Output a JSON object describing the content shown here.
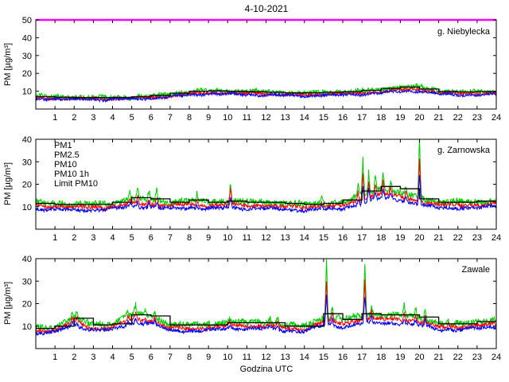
{
  "title": "4-10-2021",
  "xlabel": "Godzina UTC",
  "ylabel": "PM [µg/m³]",
  "legend": {
    "items": [
      {
        "label": "PM1",
        "color": "#0000ff"
      },
      {
        "label": "PM2.5",
        "color": "#ff0000"
      },
      {
        "label": "PM10",
        "color": "#00cc00"
      },
      {
        "label": "PM10 1h",
        "color": "#000000"
      },
      {
        "label": "Limit PM10",
        "color": "#ff00ff"
      }
    ]
  },
  "chart_data": {
    "type": "line",
    "title": "4-10-2021",
    "xlabel": "Godzina UTC",
    "ylabel": "PM [µg/m³]",
    "xlim": [
      0,
      24
    ],
    "xticks": [
      1,
      2,
      3,
      4,
      5,
      6,
      7,
      8,
      9,
      10,
      11,
      12,
      13,
      14,
      15,
      16,
      17,
      18,
      19,
      20,
      21,
      22,
      23,
      24
    ],
    "limit_pm10": 50,
    "colors": {
      "pm1": "#0000ff",
      "pm25": "#ff0000",
      "pm10": "#00cc00",
      "pm10_1h": "#000000",
      "limit": "#ff00ff"
    },
    "series_names": [
      "PM1",
      "PM2.5",
      "PM10",
      "PM10 1h",
      "Limit PM10"
    ],
    "panels": [
      {
        "name": "g. Niebylecka",
        "ylim": [
          0,
          50
        ],
        "yticks": [
          10,
          20,
          30,
          40,
          50
        ],
        "hours": [
          0,
          1,
          2,
          3,
          4,
          5,
          6,
          7,
          8,
          9,
          10,
          11,
          12,
          13,
          14,
          15,
          16,
          17,
          18,
          19,
          20,
          21,
          22,
          23,
          24
        ],
        "pm10": [
          7.0,
          6.8,
          6.5,
          6.4,
          6.4,
          6.6,
          7.2,
          8.2,
          9.5,
          10.4,
          10.1,
          9.8,
          9.6,
          9.2,
          8.8,
          9.4,
          9.5,
          10.0,
          11.0,
          12.2,
          12.4,
          10.2,
          9.6,
          9.6,
          10.0
        ],
        "pm25": [
          6.2,
          6.0,
          5.8,
          5.7,
          5.7,
          5.9,
          6.4,
          7.3,
          8.5,
          9.3,
          9.0,
          8.8,
          8.6,
          8.2,
          7.9,
          8.4,
          8.5,
          9.0,
          9.8,
          10.8,
          11.0,
          9.2,
          8.7,
          8.7,
          9.0
        ],
        "pm1": [
          5.8,
          5.6,
          5.4,
          5.3,
          5.3,
          5.5,
          6.0,
          6.8,
          7.8,
          8.6,
          8.3,
          8.1,
          7.9,
          7.6,
          7.3,
          7.8,
          7.9,
          8.3,
          9.0,
          9.9,
          10.0,
          8.5,
          8.0,
          8.0,
          8.3
        ],
        "pm10_1h": [
          6.9,
          6.6,
          6.4,
          6.4,
          6.5,
          6.9,
          7.7,
          8.9,
          10.0,
          10.2,
          9.9,
          9.7,
          9.4,
          9.0,
          9.1,
          9.4,
          9.7,
          10.5,
          11.6,
          12.3,
          11.2,
          9.8,
          9.6,
          9.8
        ],
        "spikes": []
      },
      {
        "name": "g. Zarnowska",
        "ylim": [
          0,
          40
        ],
        "yticks": [
          10,
          20,
          30,
          40
        ],
        "hours": [
          0,
          1,
          2,
          3,
          4,
          5,
          6,
          7,
          8,
          9,
          10,
          11,
          12,
          13,
          14,
          15,
          16,
          17,
          18,
          19,
          20,
          21,
          22,
          23,
          24
        ],
        "pm10": [
          12.0,
          11.5,
          11.0,
          11.0,
          11.5,
          13.5,
          13.0,
          12.0,
          12.8,
          12.0,
          12.5,
          12.0,
          12.0,
          11.5,
          11.0,
          11.5,
          12.0,
          15.0,
          18.0,
          16.0,
          14.0,
          12.0,
          12.0,
          12.0,
          13.0
        ],
        "pm25": [
          10.5,
          10.0,
          9.8,
          9.8,
          10.0,
          11.5,
          11.0,
          10.5,
          11.0,
          10.5,
          11.0,
          10.5,
          10.5,
          10.0,
          9.8,
          10.0,
          10.5,
          13.0,
          16.0,
          14.5,
          12.5,
          10.8,
          10.8,
          10.8,
          11.5
        ],
        "pm1": [
          9.0,
          8.8,
          8.5,
          8.5,
          8.8,
          10.0,
          9.8,
          9.2,
          9.5,
          9.2,
          9.5,
          9.2,
          9.2,
          8.8,
          8.5,
          8.8,
          9.2,
          11.5,
          14.0,
          13.0,
          11.0,
          9.5,
          9.5,
          9.5,
          10.0
        ],
        "pm10_1h": [
          11.5,
          11.0,
          11.0,
          11.0,
          12.0,
          14.0,
          13.5,
          12.0,
          13.0,
          12.0,
          12.5,
          12.0,
          12.0,
          11.5,
          11.0,
          11.5,
          13.0,
          17.0,
          19.0,
          18.0,
          13.5,
          12.0,
          12.0,
          12.5
        ],
        "spikes": [
          [
            4.9,
            3
          ],
          [
            5.3,
            5
          ],
          [
            5.9,
            4
          ],
          [
            6.3,
            5
          ],
          [
            8.4,
            3
          ],
          [
            10.15,
            9
          ],
          [
            14.9,
            3
          ],
          [
            16.8,
            6
          ],
          [
            17.05,
            16
          ],
          [
            17.35,
            10
          ],
          [
            17.7,
            7
          ],
          [
            18.1,
            8
          ],
          [
            18.5,
            5
          ],
          [
            19.3,
            4
          ],
          [
            20.0,
            27
          ]
        ]
      },
      {
        "name": "Zawale",
        "ylim": [
          0,
          40
        ],
        "yticks": [
          10,
          20,
          30,
          40
        ],
        "hours": [
          0,
          1,
          2,
          3,
          4,
          5,
          6,
          7,
          8,
          9,
          10,
          11,
          12,
          13,
          14,
          15,
          16,
          17,
          18,
          19,
          20,
          21,
          22,
          23,
          24
        ],
        "pm10": [
          9.0,
          9.5,
          14.0,
          10.5,
          11.0,
          15.5,
          14.5,
          10.5,
          10.5,
          10.5,
          12.0,
          11.5,
          12.0,
          10.5,
          10.0,
          14.0,
          13.0,
          15.0,
          15.0,
          15.0,
          14.0,
          11.0,
          11.0,
          12.0,
          12.5
        ],
        "pm25": [
          7.8,
          8.2,
          12.0,
          9.0,
          9.5,
          13.0,
          12.5,
          9.0,
          9.0,
          9.0,
          10.3,
          10.0,
          10.3,
          9.0,
          8.6,
          12.0,
          11.0,
          13.0,
          13.0,
          13.0,
          12.0,
          9.5,
          9.5,
          10.3,
          10.8
        ],
        "pm1": [
          6.8,
          7.2,
          10.5,
          8.0,
          8.3,
          11.5,
          11.0,
          8.0,
          8.0,
          8.0,
          9.0,
          8.8,
          9.0,
          8.0,
          7.6,
          10.5,
          9.7,
          11.3,
          11.3,
          11.3,
          10.5,
          8.4,
          8.4,
          9.0,
          9.5
        ],
        "pm10_1h": [
          9.0,
          10.0,
          13.5,
          10.5,
          11.0,
          15.0,
          14.5,
          10.5,
          10.5,
          10.5,
          11.5,
          11.5,
          11.5,
          10.0,
          10.0,
          15.5,
          13.0,
          15.5,
          15.0,
          15.0,
          14.0,
          11.0,
          11.0,
          12.0
        ],
        "spikes": [
          [
            1.9,
            3
          ],
          [
            2.15,
            3
          ],
          [
            4.8,
            3
          ],
          [
            5.2,
            4
          ],
          [
            5.7,
            3
          ],
          [
            6.2,
            3
          ],
          [
            9.0,
            2
          ],
          [
            10.1,
            2
          ],
          [
            12.2,
            3
          ],
          [
            12.6,
            3
          ],
          [
            15.15,
            26
          ],
          [
            15.45,
            6
          ],
          [
            17.15,
            24
          ],
          [
            17.5,
            5
          ],
          [
            19.2,
            5
          ],
          [
            19.8,
            4
          ],
          [
            20.3,
            6
          ],
          [
            21.5,
            2
          ]
        ]
      }
    ]
  }
}
